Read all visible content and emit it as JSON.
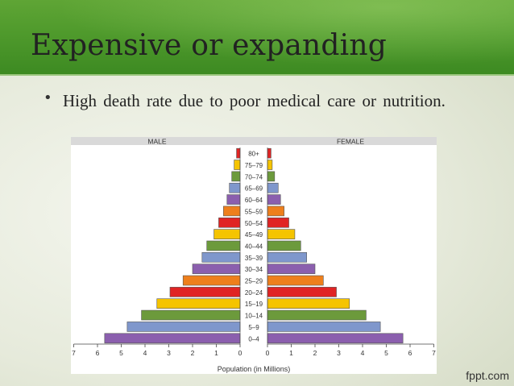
{
  "slide": {
    "title": "Expensive or expanding",
    "bullet": "High death rate due to poor  medical care or nutrition.",
    "watermark": "fppt.com"
  },
  "chart_data": {
    "type": "bar",
    "subtype": "population-pyramid",
    "title": "",
    "left_label": "MALE",
    "right_label": "FEMALE",
    "xlabel": "Population (in Millions)",
    "ylabel": "",
    "xlim": [
      0,
      7
    ],
    "x_ticks": [
      0,
      1,
      2,
      3,
      4,
      5,
      6,
      7
    ],
    "categories": [
      "80+",
      "75–79",
      "70–74",
      "65–69",
      "60–64",
      "55–59",
      "50–54",
      "45–49",
      "40–44",
      "35–39",
      "30–34",
      "25–29",
      "20–24",
      "15–19",
      "10–14",
      "5–9",
      "0–4"
    ],
    "series": [
      {
        "name": "MALE",
        "values": [
          0.15,
          0.25,
          0.35,
          0.45,
          0.55,
          0.7,
          0.9,
          1.1,
          1.4,
          1.6,
          2.0,
          2.4,
          2.95,
          3.5,
          4.15,
          4.75,
          5.7
        ]
      },
      {
        "name": "FEMALE",
        "values": [
          0.15,
          0.2,
          0.3,
          0.45,
          0.55,
          0.7,
          0.9,
          1.15,
          1.4,
          1.65,
          2.0,
          2.35,
          2.9,
          3.45,
          4.15,
          4.75,
          5.7
        ]
      }
    ],
    "bar_colors": [
      "#e02424",
      "#f5c400",
      "#6c9a3c",
      "#7f97cc",
      "#8b5fae",
      "#ee7f1c",
      "#e02424",
      "#f5c400",
      "#6c9a3c",
      "#7f97cc",
      "#8b5fae",
      "#ee7f1c",
      "#e02424",
      "#f5c400",
      "#6c9a3c",
      "#7f97cc",
      "#8b5fae"
    ],
    "grid": false
  }
}
